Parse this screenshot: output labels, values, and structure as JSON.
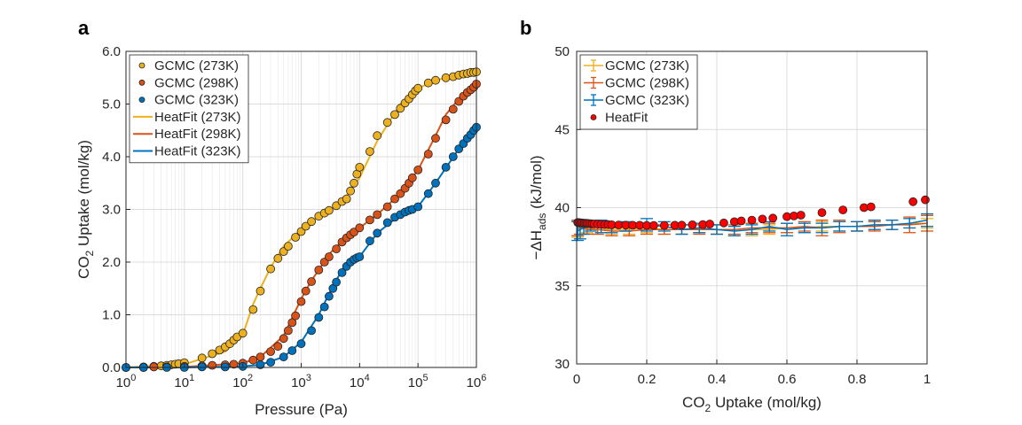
{
  "figure": {
    "panel_a_label": "a",
    "panel_b_label": "b"
  },
  "chart_data": [
    {
      "type": "scatter",
      "panel": "a",
      "xlabel": "Pressure (Pa)",
      "ylabel_main": "CO",
      "ylabel_sub": "2",
      "ylabel_rest": " Uptake (mol/kg)",
      "xscale": "log",
      "xlim": [
        1,
        1000000
      ],
      "ylim": [
        0,
        6
      ],
      "x_ticks": [
        {
          "base": "10",
          "exp": "0",
          "value": 1
        },
        {
          "base": "10",
          "exp": "1",
          "value": 10
        },
        {
          "base": "10",
          "exp": "2",
          "value": 100
        },
        {
          "base": "10",
          "exp": "3",
          "value": 1000
        },
        {
          "base": "10",
          "exp": "4",
          "value": 10000
        },
        {
          "base": "10",
          "exp": "5",
          "value": 100000
        },
        {
          "base": "10",
          "exp": "6",
          "value": 1000000
        }
      ],
      "y_ticks": [
        "0.0",
        "1.0",
        "2.0",
        "3.0",
        "4.0",
        "5.0",
        "6.0"
      ],
      "grid": true,
      "legend_position": "top-left",
      "series": [
        {
          "name": "GCMC (273K)",
          "kind": "marker",
          "color": "#EDB120",
          "x": [
            1,
            2,
            3,
            4,
            5,
            6,
            7,
            8,
            10,
            20,
            30,
            40,
            50,
            60,
            70,
            80,
            100,
            150,
            200,
            300,
            400,
            500,
            600,
            800,
            1000,
            1200,
            1500,
            2000,
            2500,
            3000,
            4000,
            5000,
            6000,
            7000,
            8000,
            9000,
            10000,
            15000,
            20000,
            30000,
            40000,
            50000,
            60000,
            70000,
            80000,
            90000,
            100000,
            150000,
            200000,
            300000,
            400000,
            500000,
            600000,
            700000,
            800000,
            900000,
            1000000
          ],
          "y": [
            0.0,
            0.01,
            0.02,
            0.03,
            0.04,
            0.05,
            0.06,
            0.07,
            0.09,
            0.18,
            0.26,
            0.33,
            0.39,
            0.45,
            0.52,
            0.58,
            0.65,
            1.1,
            1.45,
            1.87,
            2.07,
            2.2,
            2.3,
            2.47,
            2.58,
            2.68,
            2.77,
            2.87,
            2.93,
            2.98,
            3.07,
            3.15,
            3.2,
            3.35,
            3.5,
            3.67,
            3.8,
            4.1,
            4.4,
            4.65,
            4.8,
            4.92,
            5.02,
            5.1,
            5.18,
            5.25,
            5.3,
            5.4,
            5.45,
            5.5,
            5.52,
            5.55,
            5.57,
            5.58,
            5.6,
            5.6,
            5.61
          ]
        },
        {
          "name": "GCMC (298K)",
          "kind": "marker",
          "color": "#D95319",
          "x": [
            1,
            2,
            3,
            5,
            10,
            20,
            30,
            50,
            70,
            100,
            150,
            200,
            300,
            400,
            500,
            600,
            700,
            800,
            1000,
            1200,
            1500,
            2000,
            2500,
            3000,
            4000,
            5000,
            6000,
            7000,
            8000,
            10000,
            15000,
            20000,
            30000,
            40000,
            50000,
            60000,
            70000,
            80000,
            100000,
            150000,
            200000,
            300000,
            400000,
            500000,
            600000,
            700000,
            800000,
            900000,
            1000000
          ],
          "y": [
            0.0,
            0.0,
            0.01,
            0.01,
            0.02,
            0.03,
            0.04,
            0.05,
            0.06,
            0.08,
            0.14,
            0.2,
            0.3,
            0.4,
            0.55,
            0.7,
            0.85,
            0.98,
            1.25,
            1.45,
            1.63,
            1.85,
            2.0,
            2.1,
            2.25,
            2.38,
            2.46,
            2.52,
            2.57,
            2.65,
            2.8,
            2.9,
            3.05,
            3.2,
            3.3,
            3.4,
            3.5,
            3.6,
            3.75,
            4.05,
            4.35,
            4.7,
            4.9,
            5.05,
            5.15,
            5.22,
            5.27,
            5.32,
            5.38
          ]
        },
        {
          "name": "GCMC (323K)",
          "kind": "marker",
          "color": "#0072BD",
          "x": [
            1,
            2,
            5,
            10,
            20,
            50,
            100,
            200,
            300,
            500,
            700,
            1000,
            1500,
            2000,
            2500,
            3000,
            3500,
            4000,
            5000,
            6000,
            7000,
            8000,
            9000,
            10000,
            15000,
            20000,
            30000,
            40000,
            50000,
            60000,
            70000,
            80000,
            100000,
            150000,
            200000,
            300000,
            400000,
            500000,
            600000,
            700000,
            800000,
            900000,
            1000000
          ],
          "y": [
            0.0,
            0.0,
            0.0,
            0.0,
            0.01,
            0.01,
            0.02,
            0.05,
            0.1,
            0.2,
            0.32,
            0.45,
            0.7,
            0.95,
            1.15,
            1.35,
            1.5,
            1.62,
            1.8,
            1.92,
            2.0,
            2.05,
            2.08,
            2.1,
            2.4,
            2.55,
            2.75,
            2.85,
            2.9,
            2.95,
            2.98,
            3.0,
            3.05,
            3.3,
            3.5,
            3.8,
            4.0,
            4.15,
            4.25,
            4.35,
            4.42,
            4.5,
            4.56
          ]
        },
        {
          "name": "HeatFit (273K)",
          "kind": "line",
          "color": "#EDB120",
          "x": [
            1,
            10,
            50,
            100,
            150,
            200,
            300,
            500,
            1000,
            2000,
            5000,
            10000,
            20000,
            50000,
            100000,
            200000,
            500000,
            1000000
          ],
          "y": [
            0.0,
            0.06,
            0.3,
            0.62,
            1.2,
            1.5,
            1.9,
            2.3,
            2.62,
            2.87,
            3.15,
            3.6,
            4.3,
            5.0,
            5.3,
            5.45,
            5.55,
            5.6
          ]
        },
        {
          "name": "HeatFit (298K)",
          "kind": "line",
          "color": "#D95319",
          "x": [
            1,
            10,
            100,
            200,
            500,
            1000,
            1500,
            2000,
            3000,
            5000,
            10000,
            20000,
            50000,
            100000,
            200000,
            300000,
            500000,
            1000000
          ],
          "y": [
            0.0,
            0.01,
            0.08,
            0.2,
            0.6,
            1.3,
            1.65,
            1.85,
            2.15,
            2.4,
            2.65,
            2.9,
            3.3,
            3.75,
            4.4,
            4.8,
            5.1,
            5.38
          ]
        },
        {
          "name": "HeatFit (323K)",
          "kind": "line",
          "color": "#0072BD",
          "x": [
            1,
            10,
            100,
            200,
            500,
            1000,
            2000,
            3000,
            5000,
            7000,
            10000,
            20000,
            50000,
            100000,
            200000,
            500000,
            1000000
          ],
          "y": [
            0.0,
            0.0,
            0.02,
            0.05,
            0.2,
            0.48,
            1.0,
            1.4,
            1.85,
            2.0,
            2.1,
            2.55,
            2.9,
            3.05,
            3.5,
            4.15,
            4.56
          ]
        }
      ]
    },
    {
      "type": "scatter",
      "panel": "b",
      "xlabel_main": "CO",
      "xlabel_sub": "2",
      "xlabel_rest": " Uptake (mol/kg)",
      "ylabel_main": "−ΔH",
      "ylabel_sub": "ads",
      "ylabel_rest": " (kJ/mol)",
      "xlim": [
        0,
        1
      ],
      "ylim": [
        30,
        50
      ],
      "x_ticks": [
        "0",
        "0.2",
        "0.4",
        "0.6",
        "0.8",
        "1"
      ],
      "y_ticks": [
        "30",
        "35",
        "40",
        "45",
        "50"
      ],
      "grid": true,
      "legend_position": "top-left",
      "series": [
        {
          "name": "GCMC (273K)",
          "kind": "errorbar",
          "color": "#EDB120",
          "x": [
            0.003,
            0.01,
            0.03,
            0.06,
            0.1,
            0.15,
            0.2,
            0.25,
            0.3,
            0.35,
            0.4,
            0.45,
            0.5,
            0.55,
            0.6,
            0.65,
            0.7,
            0.75,
            0.8,
            0.85,
            0.9,
            0.95,
            1.0
          ],
          "y": [
            38.6,
            38.7,
            38.7,
            38.6,
            38.6,
            38.6,
            38.7,
            38.6,
            38.6,
            38.7,
            38.6,
            38.5,
            38.6,
            38.6,
            38.7,
            38.7,
            38.8,
            38.8,
            38.8,
            38.9,
            38.9,
            39.0,
            39.0
          ],
          "err": [
            0.5,
            0.4,
            0.3,
            0.3,
            0.3,
            0.3,
            0.3,
            0.3,
            0.3,
            0.3,
            0.3,
            0.3,
            0.4,
            0.3,
            0.3,
            0.3,
            0.3,
            0.3,
            0.3,
            0.3,
            0.3,
            0.3,
            0.3
          ]
        },
        {
          "name": "GCMC (298K)",
          "kind": "errorbar",
          "color": "#D95319",
          "x": [
            0.003,
            0.01,
            0.03,
            0.06,
            0.1,
            0.15,
            0.2,
            0.25,
            0.3,
            0.35,
            0.4,
            0.45,
            0.5,
            0.55,
            0.6,
            0.65,
            0.7,
            0.75,
            0.8,
            0.85,
            0.9,
            0.95,
            1.0
          ],
          "y": [
            38.7,
            38.7,
            38.6,
            38.6,
            38.5,
            38.5,
            38.6,
            38.6,
            38.6,
            38.6,
            38.6,
            38.6,
            38.7,
            38.7,
            38.7,
            38.8,
            38.7,
            38.8,
            38.8,
            38.8,
            38.9,
            38.9,
            39.0
          ],
          "err": [
            0.5,
            0.4,
            0.3,
            0.3,
            0.3,
            0.3,
            0.3,
            0.3,
            0.3,
            0.3,
            0.3,
            0.3,
            0.3,
            0.3,
            0.3,
            0.3,
            0.5,
            0.4,
            0.3,
            0.3,
            0.3,
            0.5,
            0.5
          ]
        },
        {
          "name": "GCMC (323K)",
          "kind": "errorbar",
          "color": "#0072BD",
          "x": [
            0.003,
            0.01,
            0.02,
            0.04,
            0.07,
            0.1,
            0.14,
            0.2,
            0.25,
            0.3,
            0.35,
            0.4,
            0.45,
            0.5,
            0.55,
            0.6,
            0.65,
            0.7,
            0.75,
            0.8,
            0.85,
            0.9,
            0.95,
            1.0
          ],
          "y": [
            38.5,
            38.6,
            38.7,
            38.8,
            38.8,
            38.7,
            38.8,
            38.9,
            38.8,
            38.6,
            38.7,
            38.6,
            38.5,
            38.6,
            38.8,
            38.6,
            38.7,
            38.7,
            38.8,
            38.8,
            38.9,
            38.9,
            39.0,
            39.2
          ],
          "err": [
            0.6,
            0.6,
            0.4,
            0.3,
            0.4,
            0.3,
            0.3,
            0.4,
            0.3,
            0.3,
            0.3,
            0.3,
            0.3,
            0.3,
            0.3,
            0.4,
            0.3,
            0.3,
            0.3,
            0.3,
            0.3,
            0.3,
            0.3,
            0.4
          ]
        },
        {
          "name": "HeatFit",
          "kind": "marker",
          "color": "#FF0000",
          "x": [
            0.003,
            0.006,
            0.01,
            0.014,
            0.018,
            0.022,
            0.026,
            0.03,
            0.035,
            0.04,
            0.045,
            0.05,
            0.06,
            0.07,
            0.08,
            0.09,
            0.1,
            0.12,
            0.14,
            0.16,
            0.18,
            0.2,
            0.22,
            0.25,
            0.28,
            0.3,
            0.33,
            0.36,
            0.38,
            0.42,
            0.45,
            0.47,
            0.5,
            0.53,
            0.56,
            0.6,
            0.62,
            0.64,
            0.7,
            0.76,
            0.82,
            0.84,
            0.96,
            0.995
          ],
          "y": [
            39.05,
            39.04,
            39.03,
            39.02,
            39.01,
            39.0,
            39.0,
            38.99,
            38.98,
            38.97,
            38.96,
            38.95,
            38.94,
            38.93,
            38.92,
            38.91,
            38.9,
            38.89,
            38.88,
            38.87,
            38.87,
            38.86,
            38.86,
            38.86,
            38.87,
            38.88,
            38.9,
            38.92,
            38.95,
            39.02,
            39.1,
            39.15,
            39.2,
            39.27,
            39.33,
            39.42,
            39.47,
            39.52,
            39.68,
            39.85,
            40.0,
            40.05,
            40.38,
            40.5
          ]
        }
      ]
    }
  ]
}
